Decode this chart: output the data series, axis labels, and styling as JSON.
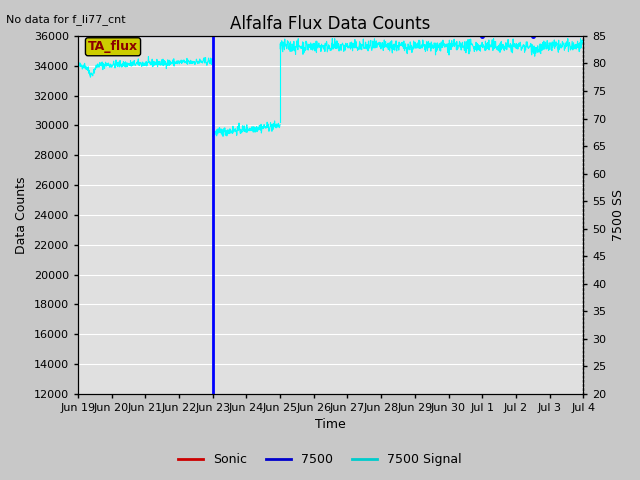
{
  "title": "Alfalfa Flux Data Counts",
  "top_left_text": "No data for f_li77_cnt",
  "xlabel": "Time",
  "ylabel_left": "Data Counts",
  "ylabel_right": "7500 SS",
  "ylim_left": [
    12000,
    36000
  ],
  "ylim_right": [
    20,
    85
  ],
  "yticks_left": [
    12000,
    14000,
    16000,
    18000,
    20000,
    22000,
    24000,
    26000,
    28000,
    30000,
    32000,
    34000,
    36000
  ],
  "yticks_right": [
    20,
    25,
    30,
    35,
    40,
    45,
    50,
    55,
    60,
    65,
    70,
    75,
    80,
    85
  ],
  "xtick_labels": [
    "Jun 19",
    "Jun 20",
    "Jun 21",
    "Jun 22",
    "Jun 23",
    "Jun 24",
    "Jun 25",
    "Jun 26",
    "Jun 27",
    "Jun 28",
    "Jun 29",
    "Jun 30",
    "Jul 1",
    "Jul 2",
    "Jul 3",
    "Jul 4"
  ],
  "fig_bg_color": "#c8c8c8",
  "plot_bg_color": "#e0e0e0",
  "grid_color": "#ffffff",
  "legend_labels": [
    "Sonic",
    "7500",
    "7500 Signal"
  ],
  "legend_colors": [
    "#cc0000",
    "#0000cc",
    "#00cccc"
  ],
  "ta_flux_box_color": "#cccc00",
  "ta_flux_text": "TA_flux",
  "title_fontsize": 12,
  "label_fontsize": 9,
  "tick_fontsize": 8,
  "annot_fontsize": 8
}
